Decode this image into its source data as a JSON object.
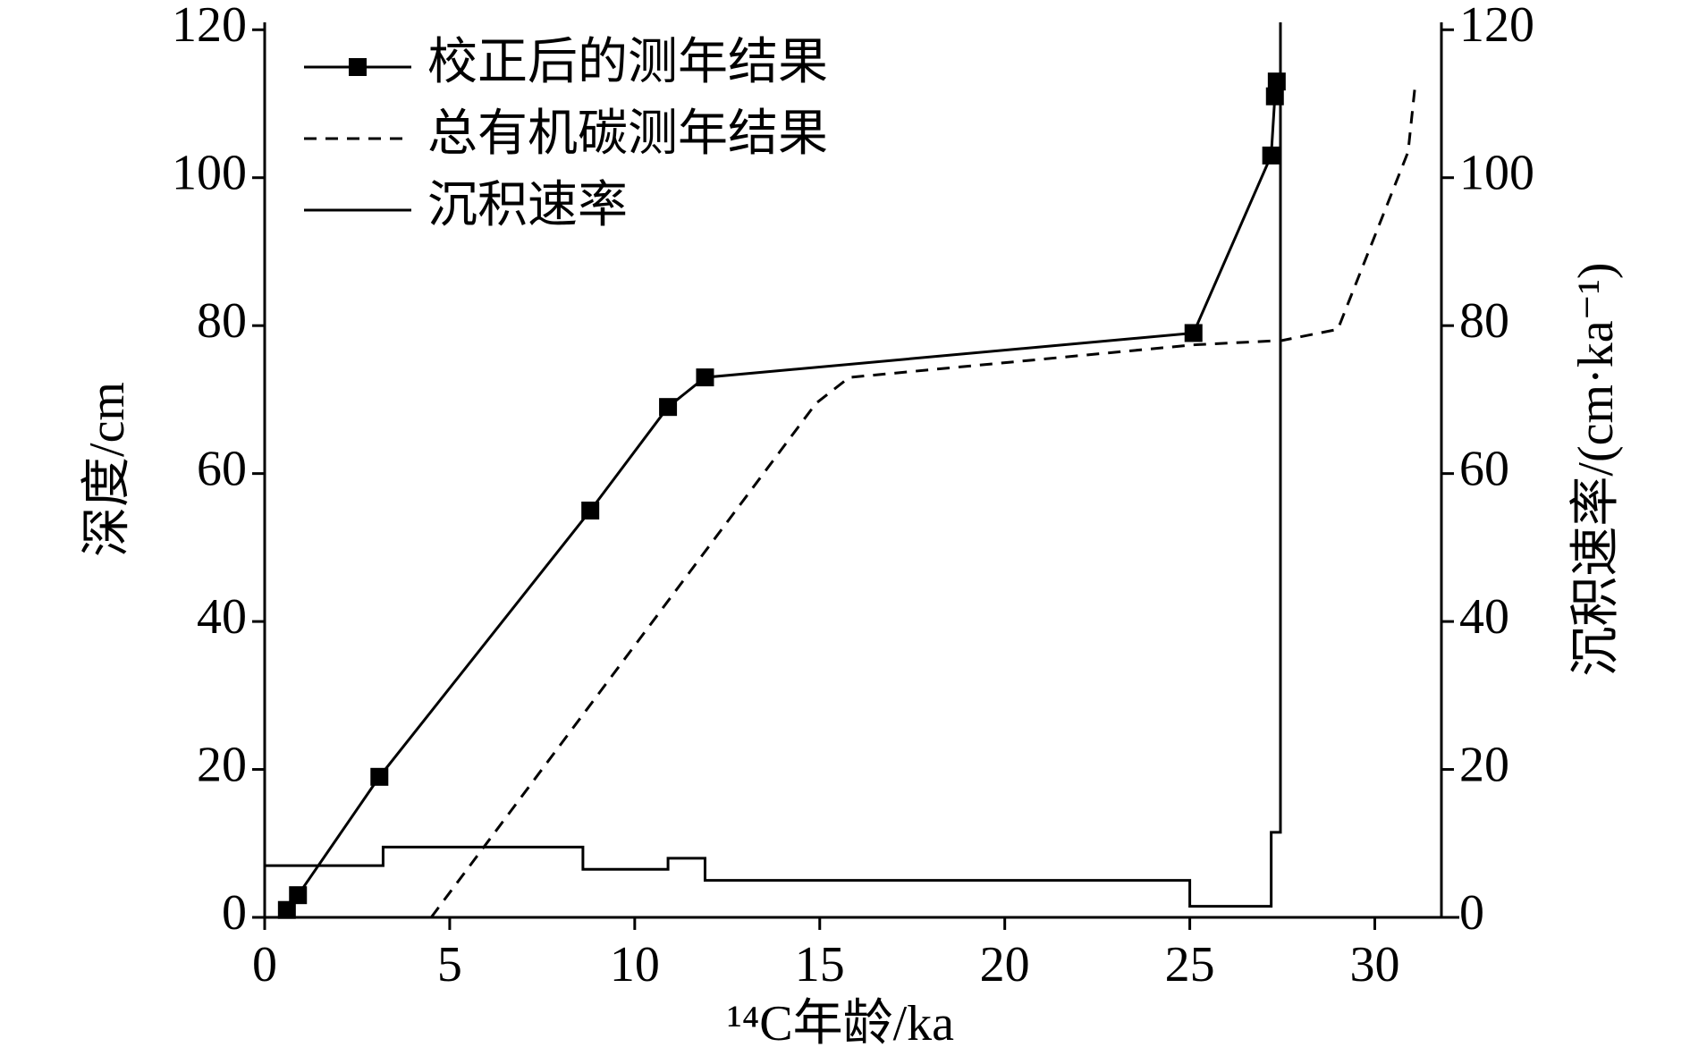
{
  "chart_data": {
    "type": "line",
    "xlabel": "¹⁴C年龄/ka",
    "ylabel": "深度/cm",
    "y2label": "沉积速率/(cm·ka⁻¹)",
    "xlim": [
      0,
      31.8
    ],
    "xticks": [
      0,
      5,
      10,
      15,
      20,
      25,
      30
    ],
    "ylim": [
      0,
      121
    ],
    "yticks": [
      0,
      20,
      40,
      60,
      80,
      100,
      120
    ],
    "y2lim": [
      0,
      121
    ],
    "y2ticks": [
      0,
      20,
      40,
      60,
      80,
      100,
      120
    ],
    "legend": "upper left",
    "series": [
      {
        "name": "校正后的测年结果",
        "color": "#000000",
        "marker": "square",
        "linestyle": "solid",
        "x": [
          0.6,
          0.9,
          3.1,
          8.8,
          10.9,
          11.9,
          25.1,
          27.2,
          27.3,
          27.35
        ],
        "values": [
          1,
          3,
          19,
          55,
          69,
          73,
          79,
          103,
          111,
          113
        ]
      },
      {
        "name": "总有机碳测年结果",
        "color": "#000000",
        "linestyle": "dashed",
        "x": [
          4.5,
          14.9,
          15.8,
          25.1,
          27.5,
          29.0,
          30.9,
          31.1
        ],
        "values": [
          0,
          69.5,
          73,
          77.4,
          78,
          79.5,
          103.5,
          113
        ]
      },
      {
        "name": "沉积速率",
        "color": "#000000",
        "linestyle": "solid",
        "axis": "y2",
        "drawstyle": "steps-post",
        "x": [
          0,
          3.2,
          8.6,
          10.9,
          11.9,
          25.0,
          27.2,
          27.45
        ],
        "values": [
          7,
          9.5,
          6.5,
          8,
          5,
          1.5,
          11.5,
          121
        ]
      }
    ]
  }
}
